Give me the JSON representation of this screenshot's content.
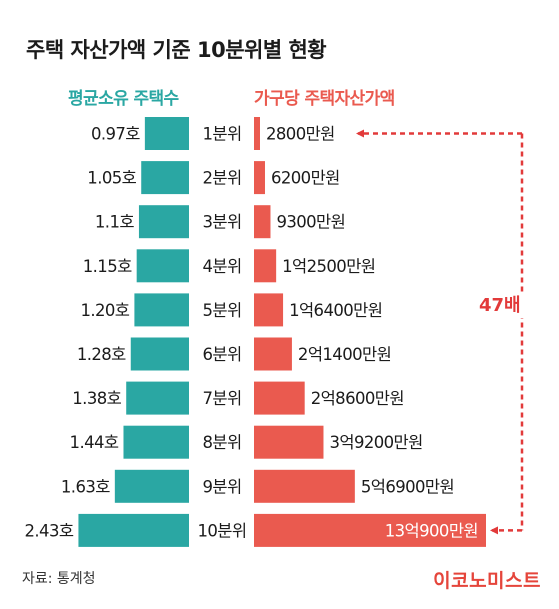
{
  "title": "주택 자산가액 기준 10분위별 현황",
  "headers": {
    "left": "평균소유 주택수",
    "right": "가구당 주택자산가액"
  },
  "annotation": "47배",
  "source": "자료: 통계청",
  "brand": "이코노미스트",
  "colors": {
    "teal": "#2aa7a3",
    "red": "#ea5a4f",
    "arrow": "#e23a3a",
    "text": "#1b1b1b"
  },
  "chart_data": {
    "type": "bar",
    "categories": [
      "1분위",
      "2분위",
      "3분위",
      "4분위",
      "5분위",
      "6분위",
      "7분위",
      "8분위",
      "9분위",
      "10분위"
    ],
    "series": [
      {
        "name": "평균소유 주택수",
        "values": [
          0.97,
          1.05,
          1.1,
          1.15,
          1.2,
          1.28,
          1.38,
          1.44,
          1.63,
          2.43
        ],
        "labels": [
          "0.97호",
          "1.05호",
          "1.1호",
          "1.15호",
          "1.20호",
          "1.28호",
          "1.38호",
          "1.44호",
          "1.63호",
          "2.43호"
        ]
      },
      {
        "name": "가구당 주택자산가액",
        "values": [
          2800,
          6200,
          9300,
          12500,
          16400,
          21400,
          28600,
          39200,
          56900,
          130900
        ],
        "labels": [
          "2800만원",
          "6200만원",
          "9300만원",
          "1억2500만원",
          "1억6400만원",
          "2억1400만원",
          "2억8600만원",
          "3억9200만원",
          "5억6900만원",
          "13억900만원"
        ]
      }
    ]
  }
}
